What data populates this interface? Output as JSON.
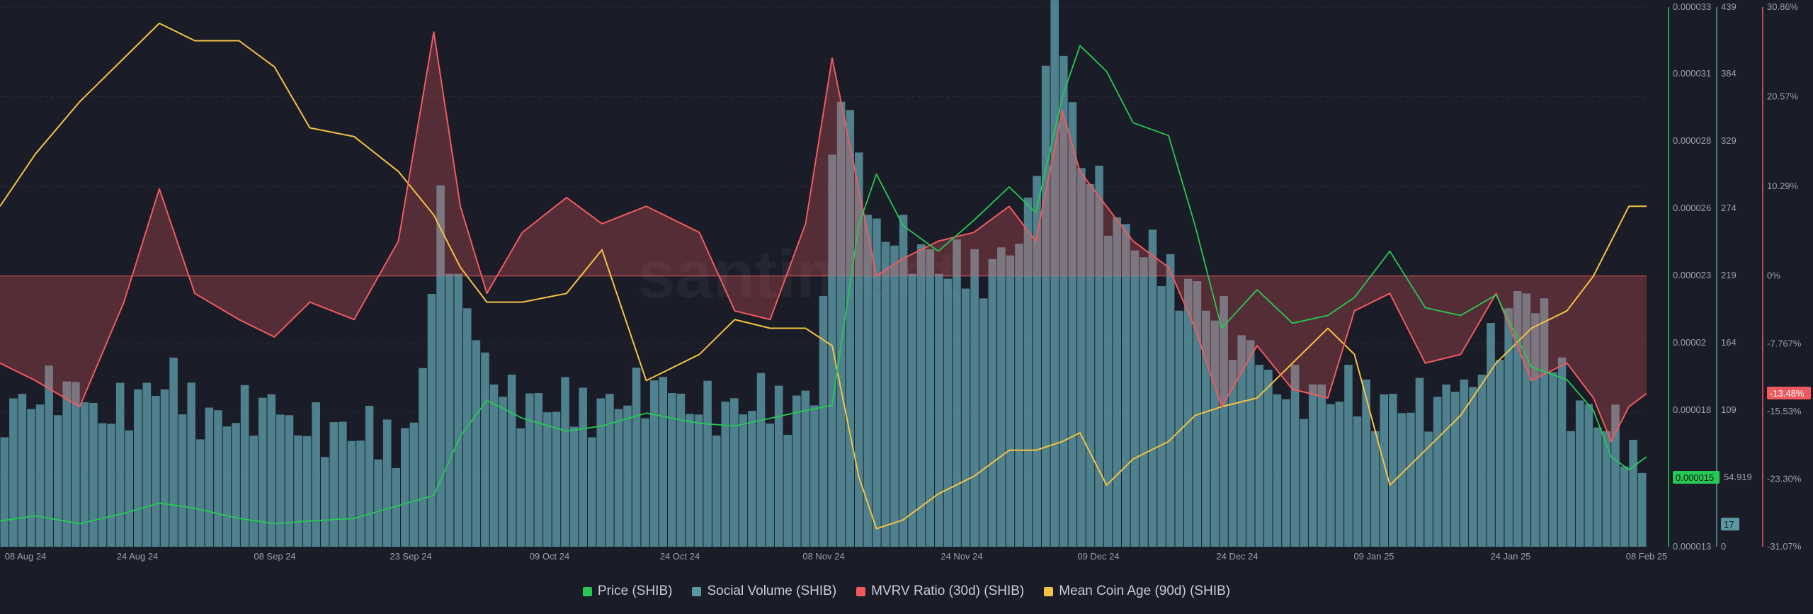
{
  "chart_data": {
    "type": "line",
    "title": "",
    "watermark": "santiment",
    "x_ticks": [
      "08 Aug 24",
      "24 Aug 24",
      "08 Sep 24",
      "23 Sep 24",
      "09 Oct 24",
      "24 Oct 24",
      "08 Nov 24",
      "24 Nov 24",
      "09 Dec 24",
      "24 Dec 24",
      "09 Jan 25",
      "24 Jan 25",
      "08 Feb 25"
    ],
    "x_range": [
      "2024-08-06",
      "2025-02-08"
    ],
    "axes": {
      "price": {
        "ticks": [
          "0.000033",
          "0.000031",
          "0.000028",
          "0.000026",
          "0.000023",
          "0.00002",
          "0.000018",
          "0.000015",
          "0.000013"
        ],
        "range": [
          1.25e-05,
          3.35e-05
        ],
        "color": "#26c953"
      },
      "social_volume": {
        "ticks": [
          "439",
          "384",
          "329",
          "274",
          "219",
          "164",
          "109",
          "54.919",
          "17",
          "0"
        ],
        "range": [
          0,
          439
        ],
        "color": "#5a97a3"
      },
      "mvrv": {
        "ticks": [
          "30.86%",
          "20.57%",
          "10.29%",
          "0%",
          "-7.767%",
          "-15.53%",
          "-23.30%",
          "-31.07%"
        ],
        "range": [
          -31.07,
          30.86
        ],
        "color": "#f05a5f"
      }
    },
    "current_labels": {
      "price": "0.000015",
      "social_volume": "17",
      "mvrv": "-13.48%"
    },
    "series": [
      {
        "name": "Price (SHIB)",
        "color": "#26c953",
        "axis": "price",
        "x": [
          "2024-08-06",
          "2024-08-10",
          "2024-08-15",
          "2024-08-20",
          "2024-08-24",
          "2024-08-28",
          "2024-09-02",
          "2024-09-06",
          "2024-09-10",
          "2024-09-15",
          "2024-09-20",
          "2024-09-24",
          "2024-09-27",
          "2024-09-30",
          "2024-10-04",
          "2024-10-09",
          "2024-10-13",
          "2024-10-18",
          "2024-10-24",
          "2024-10-28",
          "2024-11-01",
          "2024-11-05",
          "2024-11-08",
          "2024-11-11",
          "2024-11-13",
          "2024-11-16",
          "2024-11-20",
          "2024-11-24",
          "2024-11-28",
          "2024-12-01",
          "2024-12-04",
          "2024-12-06",
          "2024-12-09",
          "2024-12-12",
          "2024-12-16",
          "2024-12-19",
          "2024-12-22",
          "2024-12-26",
          "2024-12-30",
          "2025-01-03",
          "2025-01-06",
          "2025-01-10",
          "2025-01-14",
          "2025-01-18",
          "2025-01-22",
          "2025-01-26",
          "2025-01-30",
          "2025-02-02",
          "2025-02-04",
          "2025-02-06",
          "2025-02-08"
        ],
        "y": [
          1.35e-05,
          1.37e-05,
          1.34e-05,
          1.38e-05,
          1.42e-05,
          1.4e-05,
          1.36e-05,
          1.34e-05,
          1.35e-05,
          1.36e-05,
          1.41e-05,
          1.45e-05,
          1.68e-05,
          1.82e-05,
          1.75e-05,
          1.7e-05,
          1.72e-05,
          1.77e-05,
          1.73e-05,
          1.72e-05,
          1.75e-05,
          1.78e-05,
          1.8e-05,
          2.5e-05,
          2.7e-05,
          2.5e-05,
          2.4e-05,
          2.52e-05,
          2.65e-05,
          2.55e-05,
          3e-05,
          3.2e-05,
          3.1e-05,
          2.9e-05,
          2.85e-05,
          2.5e-05,
          2.1e-05,
          2.25e-05,
          2.12e-05,
          2.15e-05,
          2.22e-05,
          2.4e-05,
          2.18e-05,
          2.15e-05,
          2.23e-05,
          1.95e-05,
          1.9e-05,
          1.78e-05,
          1.6e-05,
          1.55e-05,
          1.6e-05
        ]
      },
      {
        "name": "Social Volume (SHIB)",
        "color": "#5a97a3",
        "axis": "social_volume",
        "x": [
          "2024-08-06",
          "2024-08-12",
          "2024-08-18",
          "2024-08-24",
          "2024-08-30",
          "2024-09-05",
          "2024-09-11",
          "2024-09-17",
          "2024-09-21",
          "2024-09-24",
          "2024-09-27",
          "2024-10-02",
          "2024-10-08",
          "2024-10-14",
          "2024-10-20",
          "2024-10-26",
          "2024-11-01",
          "2024-11-06",
          "2024-11-09",
          "2024-11-12",
          "2024-11-16",
          "2024-11-21",
          "2024-11-26",
          "2024-11-30",
          "2024-12-03",
          "2024-12-06",
          "2024-12-10",
          "2024-12-14",
          "2024-12-19",
          "2024-12-24",
          "2024-12-29",
          "2025-01-03",
          "2025-01-09",
          "2025-01-15",
          "2025-01-20",
          "2025-01-25",
          "2025-01-30",
          "2025-02-03",
          "2025-02-06",
          "2025-02-08"
        ],
        "y": [
          115,
          125,
          110,
          130,
          105,
          110,
          95,
          85,
          95,
          270,
          180,
          120,
          110,
          120,
          125,
          110,
          115,
          125,
          380,
          270,
          250,
          220,
          230,
          260,
          439,
          320,
          260,
          230,
          210,
          160,
          130,
          120,
          120,
          110,
          150,
          210,
          120,
          100,
          75,
          17
        ]
      },
      {
        "name": "MVRV Ratio (30d) (SHIB)",
        "color": "#f05a5f",
        "axis": "mvrv",
        "x": [
          "2024-08-06",
          "2024-08-10",
          "2024-08-15",
          "2024-08-20",
          "2024-08-24",
          "2024-08-28",
          "2024-09-02",
          "2024-09-06",
          "2024-09-10",
          "2024-09-15",
          "2024-09-20",
          "2024-09-24",
          "2024-09-27",
          "2024-09-30",
          "2024-10-04",
          "2024-10-09",
          "2024-10-13",
          "2024-10-18",
          "2024-10-24",
          "2024-10-28",
          "2024-11-01",
          "2024-11-05",
          "2024-11-08",
          "2024-11-11",
          "2024-11-13",
          "2024-11-16",
          "2024-11-20",
          "2024-11-24",
          "2024-11-28",
          "2024-12-01",
          "2024-12-04",
          "2024-12-06",
          "2024-12-09",
          "2024-12-12",
          "2024-12-16",
          "2024-12-19",
          "2024-12-22",
          "2024-12-26",
          "2024-12-30",
          "2025-01-03",
          "2025-01-06",
          "2025-01-10",
          "2025-01-14",
          "2025-01-18",
          "2025-01-22",
          "2025-01-26",
          "2025-01-30",
          "2025-02-02",
          "2025-02-04",
          "2025-02-06",
          "2025-02-08"
        ],
        "y": [
          -10,
          -12,
          -15,
          -3,
          10,
          -2,
          -5,
          -7,
          -3,
          -5,
          4,
          28,
          8,
          -2,
          5,
          9,
          6,
          8,
          5,
          -4,
          -5,
          6,
          25,
          10,
          0,
          2,
          4,
          5,
          8,
          4,
          19,
          12,
          8,
          4,
          1,
          -6,
          -15,
          -8,
          -13,
          -14,
          -4,
          -2,
          -10,
          -9,
          -2,
          -12,
          -10,
          -14,
          -19,
          -15,
          -13.48
        ]
      },
      {
        "name": "Mean Coin Age (90d) (SHIB)",
        "color": "#f4c243",
        "axis": "mvrv",
        "x": [
          "2024-08-06",
          "2024-08-10",
          "2024-08-15",
          "2024-08-20",
          "2024-08-24",
          "2024-08-28",
          "2024-09-02",
          "2024-09-06",
          "2024-09-10",
          "2024-09-15",
          "2024-09-20",
          "2024-09-24",
          "2024-09-27",
          "2024-09-30",
          "2024-10-04",
          "2024-10-09",
          "2024-10-13",
          "2024-10-18",
          "2024-10-24",
          "2024-10-28",
          "2024-11-01",
          "2024-11-05",
          "2024-11-08",
          "2024-11-11",
          "2024-11-13",
          "2024-11-16",
          "2024-11-20",
          "2024-11-24",
          "2024-11-28",
          "2024-12-01",
          "2024-12-04",
          "2024-12-06",
          "2024-12-09",
          "2024-12-12",
          "2024-12-16",
          "2024-12-19",
          "2024-12-22",
          "2024-12-26",
          "2024-12-30",
          "2025-01-03",
          "2025-01-06",
          "2025-01-10",
          "2025-01-14",
          "2025-01-18",
          "2025-01-22",
          "2025-01-26",
          "2025-01-30",
          "2025-02-02",
          "2025-02-04",
          "2025-02-06",
          "2025-02-08"
        ],
        "y": [
          8,
          14,
          20,
          25,
          29,
          27,
          27,
          24,
          17,
          16,
          12,
          7,
          1,
          -3,
          -3,
          -2,
          3,
          -12,
          -9,
          -5,
          -6,
          -6,
          -8,
          -23,
          -29,
          -28,
          -25,
          -23,
          -20,
          -20,
          -19,
          -18,
          -24,
          -21,
          -19,
          -16,
          -15,
          -14,
          -10,
          -6,
          -9,
          -24,
          -20,
          -16,
          -10,
          -6,
          -4,
          0,
          4,
          8,
          8
        ]
      }
    ]
  },
  "legend": [
    {
      "label": "Price (SHIB)",
      "color": "#26c953"
    },
    {
      "label": "Social Volume (SHIB)",
      "color": "#5a97a3"
    },
    {
      "label": "MVRV Ratio (30d) (SHIB)",
      "color": "#f05a5f"
    },
    {
      "label": "Mean Coin Age (90d) (SHIB)",
      "color": "#f4c243"
    }
  ]
}
